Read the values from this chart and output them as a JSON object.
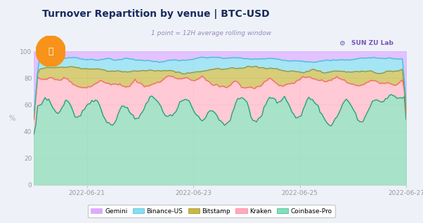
{
  "title": "Turnover Repartition by venue | BTC-USD",
  "subtitle": "1 point = 12H average rolling window",
  "ylabel": "%",
  "fig_bg": "#eef2f8",
  "plot_bg": "#ffffff",
  "ylim": [
    0,
    100
  ],
  "yticks": [
    0,
    20,
    40,
    60,
    80,
    100
  ],
  "xtick_labels": [
    "2022-06-21",
    "2022-06-23",
    "2022-06-25",
    "2022-06-27"
  ],
  "n_points": 200,
  "gemini_fill": "#ddb8ff",
  "gemini_alpha": 0.85,
  "binance_fill": "#88ddf0",
  "binance_line": "#22ccdd",
  "binance_alpha": 0.75,
  "bitstamp_fill": "#c8b840",
  "bitstamp_line": "#a09020",
  "bitstamp_alpha": 0.7,
  "kraken_fill": "#ffb8c8",
  "kraken_line": "#ff6680",
  "kraken_alpha": 0.75,
  "coinbase_fill": "#99ddc0",
  "coinbase_line": "#00aa78",
  "coinbase_alpha": 0.85,
  "legend_gemini_fill": "#ddaaff",
  "legend_binance_fill": "#88ddf0",
  "legend_bitstamp_fill": "#c8b840",
  "legend_kraken_fill": "#ffaabb",
  "legend_coinbase_fill": "#88ddbb"
}
